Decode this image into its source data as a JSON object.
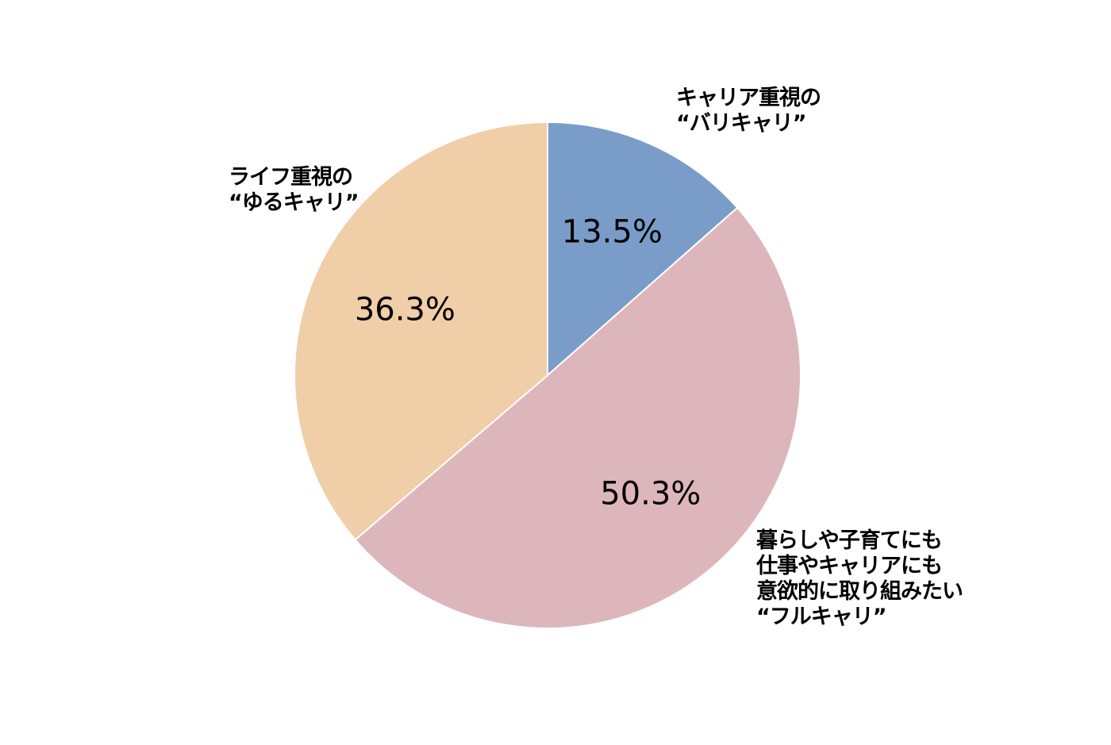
{
  "chart_data": {
    "type": "pie",
    "start_angle_deg": 0,
    "direction": "clockwise",
    "slices": [
      {
        "label_lines": [
          "キャリア重視の",
          "“バリキャリ”"
        ],
        "value": 13.5,
        "value_label": "13.5%",
        "color": "#7a9cc8"
      },
      {
        "label_lines": [
          "暮らしや子育てにも",
          "仕事やキャリアにも",
          "意欲的に取り組みたい",
          "“フルキャリ”"
        ],
        "value": 50.3,
        "value_label": "50.3%",
        "color": "#ddb6bc"
      },
      {
        "label_lines": [
          "ライフ重視の",
          "“ゆるキャリ”"
        ],
        "value": 36.3,
        "value_label": "36.3%",
        "color": "#f0cea8"
      }
    ]
  }
}
